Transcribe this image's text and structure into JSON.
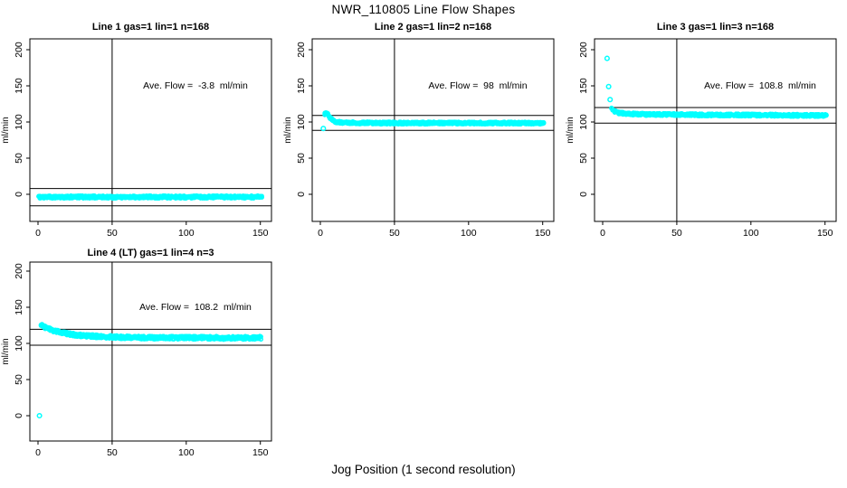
{
  "title": "NWR_110805  Line Flow Shapes",
  "xlabel": "Jog Position (1 second resolution)",
  "point_color": "#00FFFF",
  "axis_color": "#000000",
  "chart_data": [
    {
      "type": "scatter",
      "title": "Line 1 gas=1 lin=1 n=168",
      "annotation": "Ave. Flow =  -3.8  ml/min",
      "ave_flow": -3.8,
      "ylabel": "ml/min",
      "xlim": [
        -5.5,
        157.5
      ],
      "ylim": [
        -37.5,
        215
      ],
      "xticks": [
        0,
        50,
        100,
        150
      ],
      "yticks": [
        0,
        50,
        100,
        150,
        200
      ],
      "vline_x": 50,
      "hlines": [
        8,
        -16
      ],
      "band": 3.6,
      "curve": [
        [
          0.5,
          -3.8
        ],
        [
          151,
          -3.8
        ]
      ],
      "outliers": []
    },
    {
      "type": "scatter",
      "title": "Line 2 gas=1 lin=2 n=168",
      "annotation": "Ave. Flow =  98  ml/min",
      "ave_flow": 98,
      "ylabel": "ml/min",
      "xlim": [
        -5.5,
        157.5
      ],
      "ylim": [
        -37.5,
        215
      ],
      "xticks": [
        0,
        50,
        100,
        150
      ],
      "yticks": [
        0,
        50,
        100,
        150,
        200
      ],
      "vline_x": 50,
      "hlines": [
        109,
        88.5
      ],
      "band": 3.4,
      "curve": [
        [
          3,
          111
        ],
        [
          4,
          112
        ],
        [
          5,
          110.5
        ],
        [
          6,
          107
        ],
        [
          8,
          103
        ],
        [
          10,
          100.5
        ],
        [
          13,
          99.5
        ],
        [
          18,
          99
        ],
        [
          40,
          98.5
        ],
        [
          151,
          98.5
        ]
      ],
      "outliers": [
        [
          2,
          91
        ]
      ]
    },
    {
      "type": "scatter",
      "title": "Line 3 gas=1 lin=3 n=168",
      "annotation": "Ave. Flow =  108.8  ml/min",
      "ave_flow": 108.8,
      "ylabel": "ml/min",
      "xlim": [
        -5.5,
        157.5
      ],
      "ylim": [
        -37.5,
        215
      ],
      "xticks": [
        0,
        50,
        100,
        150
      ],
      "yticks": [
        0,
        50,
        100,
        150,
        200
      ],
      "vline_x": 50,
      "hlines": [
        120,
        98.5
      ],
      "band": 3.4,
      "curve": [
        [
          6,
          119
        ],
        [
          7,
          116
        ],
        [
          8,
          114.5
        ],
        [
          10,
          113
        ],
        [
          13,
          112
        ],
        [
          18,
          111.2
        ],
        [
          30,
          110.5
        ],
        [
          60,
          110
        ],
        [
          151,
          109
        ]
      ],
      "outliers": [
        [
          3,
          188
        ],
        [
          4,
          149
        ],
        [
          5,
          131
        ]
      ]
    },
    {
      "type": "scatter",
      "title": "Line 4 (LT) gas=1 lin=4 n=3",
      "annotation": "Ave. Flow =  108.2  ml/min",
      "ave_flow": 108.2,
      "ylabel": "ml/min",
      "xlim": [
        -5.5,
        157.5
      ],
      "ylim": [
        -35,
        212.5
      ],
      "xticks": [
        0,
        50,
        100,
        150
      ],
      "yticks": [
        0,
        50,
        100,
        150,
        200
      ],
      "vline_x": 50,
      "hlines": [
        119.5,
        97.5
      ],
      "band": 4.6,
      "curve": [
        [
          2,
          125
        ],
        [
          3,
          124
        ],
        [
          5,
          122
        ],
        [
          8,
          119.5
        ],
        [
          11,
          117.5
        ],
        [
          15,
          115.5
        ],
        [
          19,
          113.8
        ],
        [
          24,
          112
        ],
        [
          30,
          110.8
        ],
        [
          38,
          109.8
        ],
        [
          50,
          108.8
        ],
        [
          65,
          108.2
        ],
        [
          85,
          107.8
        ],
        [
          110,
          107.8
        ],
        [
          130,
          107.5
        ],
        [
          151,
          107.8
        ]
      ],
      "outliers": [
        [
          1,
          0
        ]
      ]
    }
  ]
}
